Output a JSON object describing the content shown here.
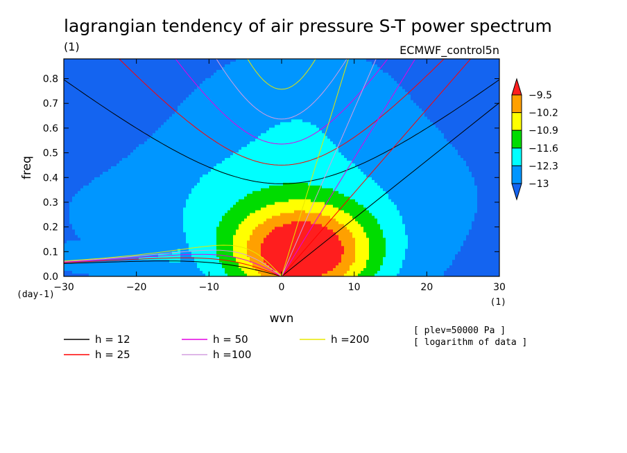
{
  "chart_data": {
    "type": "heatmap",
    "title": "lagrangian tendency of air pressure S-T power spectrum",
    "subtitle_left": "(1)",
    "subtitle_right": "ECMWF_control5n",
    "xlabel": "wvn",
    "ylabel": "freq",
    "x_unit": "(1)",
    "y_unit": "(day-1)",
    "xlim": [
      -30,
      30
    ],
    "ylim": [
      0,
      0.88
    ],
    "xticks": [
      -30,
      -20,
      -10,
      0,
      10,
      20,
      30
    ],
    "yticks": [
      0.0,
      0.1,
      0.2,
      0.3,
      0.4,
      0.5,
      0.6,
      0.7,
      0.8
    ],
    "ytick_labels": [
      "0.0",
      "0.1",
      "0.2",
      "0.3",
      "0.4",
      "0.5",
      "0.6",
      "0.7",
      "0.8"
    ],
    "colorbar": {
      "levels": [
        "-9.5",
        "-10.2",
        "-10.9",
        "-11.6",
        "-12.3",
        "-13"
      ],
      "colors": [
        "#1464f0",
        "#0096ff",
        "#00ffff",
        "#00dc00",
        "#ffff00",
        "#ffa000",
        "#ff1e1e"
      ],
      "extend": "both"
    },
    "contour_levels": [
      -13.0,
      -12.3,
      -11.6,
      -10.9,
      -10.2,
      -9.5
    ],
    "dispersion_curves": [
      {
        "name": "h = 12",
        "h": 12,
        "color": "#000000"
      },
      {
        "name": "h = 25",
        "h": 25,
        "color": "#ff0000"
      },
      {
        "name": "h = 50",
        "h": 50,
        "color": "#e400e4"
      },
      {
        "name": "h =100",
        "h": 100,
        "color": "#d49ee0"
      },
      {
        "name": "h =200",
        "h": 200,
        "color": "#e8e800"
      }
    ],
    "notes": [
      "[ plev=50000 Pa ]",
      "[ logarithm of data ]"
    ],
    "grid": false
  }
}
